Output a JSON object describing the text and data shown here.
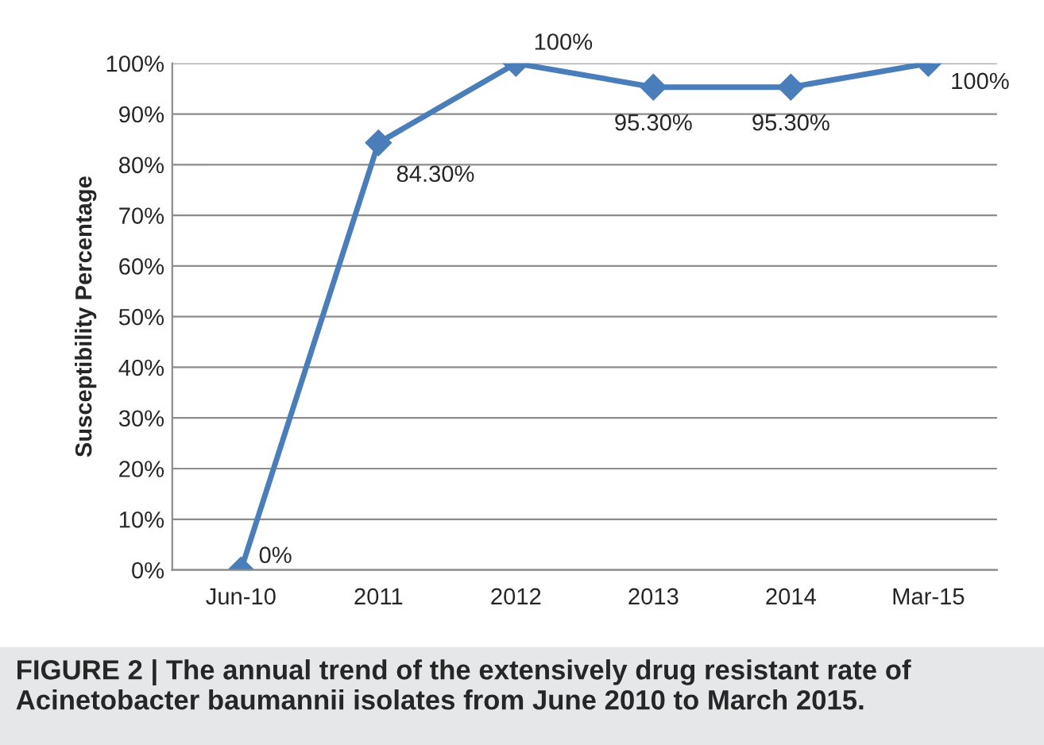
{
  "chart_data": {
    "type": "line",
    "ylabel": "Susceptibility Percentage",
    "categories": [
      "Jun-10",
      "2011",
      "2012",
      "2013",
      "2014",
      "Mar-15"
    ],
    "series": [
      {
        "color": "#4a7ebb",
        "values": [
          0,
          84.3,
          100,
          95.3,
          95.3,
          100
        ],
        "value_labels": [
          "0%",
          "84.30%",
          "100%",
          "95.30%",
          "95.30%",
          "100%"
        ]
      }
    ],
    "ylim": [
      0,
      100
    ],
    "yticks": [
      {
        "value": 0,
        "label": "0%"
      },
      {
        "value": 10,
        "label": "10%"
      },
      {
        "value": 20,
        "label": "20%"
      },
      {
        "value": 30,
        "label": "30%"
      },
      {
        "value": 40,
        "label": "40%"
      },
      {
        "value": 50,
        "label": "50%"
      },
      {
        "value": 60,
        "label": "60%"
      },
      {
        "value": 70,
        "label": "70%"
      },
      {
        "value": 80,
        "label": "80%"
      },
      {
        "value": 90,
        "label": "90%"
      },
      {
        "value": 100,
        "label": "100%"
      }
    ],
    "grid": "y",
    "marker": "diamond",
    "line_style": "solid",
    "legend": false,
    "annotations": [
      "FIGURE 2 | The annual trend of the extensively drug resistant rate of Acinetobacter baumannii isolates from June 2010 to March 2015."
    ]
  }
}
